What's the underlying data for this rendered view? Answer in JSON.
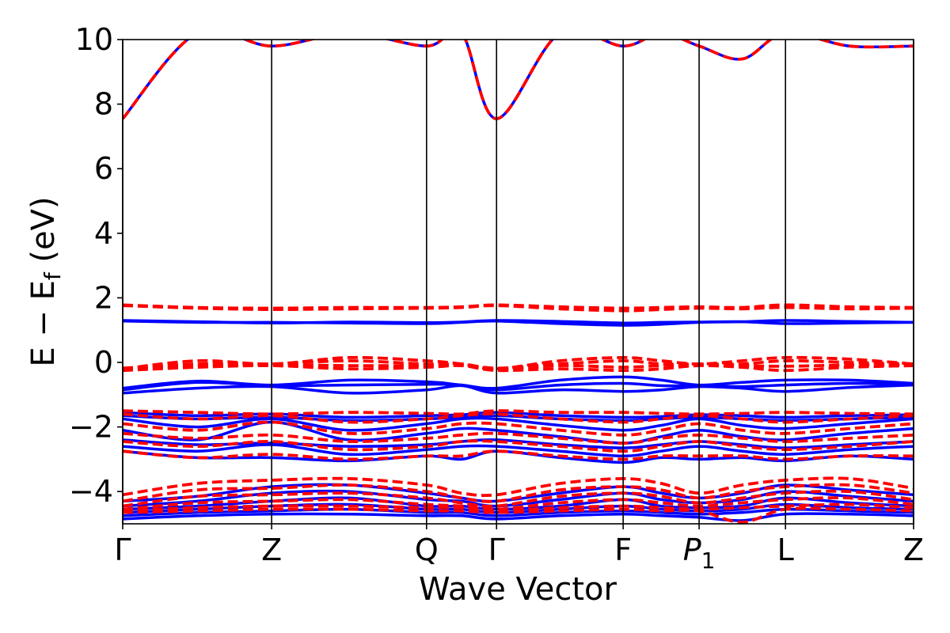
{
  "chart_data": {
    "type": "line",
    "title": "",
    "xlabel": "Wave Vector",
    "ylabel": "E − E",
    "ylabel_subscript": "f",
    "ylabel_unit": " (eV)",
    "ylim": [
      -5,
      10
    ],
    "yticks": [
      {
        "value": -4,
        "label": "−4"
      },
      {
        "value": -2,
        "label": "−2"
      },
      {
        "value": 0,
        "label": "0"
      },
      {
        "value": 2,
        "label": "2"
      },
      {
        "value": 4,
        "label": "4"
      },
      {
        "value": 6,
        "label": "6"
      },
      {
        "value": 8,
        "label": "8"
      },
      {
        "value": 10,
        "label": "10"
      }
    ],
    "kpoints": [
      {
        "label": "Γ",
        "pos": 0.0
      },
      {
        "label": "Z",
        "pos": 1.0
      },
      {
        "label": "Q",
        "pos": 2.04
      },
      {
        "label": "Γ",
        "pos": 2.51
      },
      {
        "label": "F",
        "pos": 3.36
      },
      {
        "label": "P",
        "sub": "1",
        "italic": true,
        "pos": 3.87
      },
      {
        "label": "L",
        "pos": 4.45
      },
      {
        "label": "Z",
        "pos": 5.31
      }
    ],
    "grid": false,
    "legend": "none",
    "series": [
      {
        "style": "solid",
        "color": "#0000ff",
        "bands": [
          [
            7.55,
            10.2,
            9.8,
            10.2,
            9.8,
            10.2,
            7.55,
            10.2,
            9.8,
            10.2,
            9.8,
            9.4,
            10.2,
            9.8,
            9.8
          ],
          [
            1.3,
            1.26,
            1.22,
            1.25,
            1.23,
            1.25,
            1.3,
            1.27,
            1.22,
            1.24,
            1.25,
            1.26,
            1.3,
            1.27,
            1.24
          ],
          [
            1.28,
            1.24,
            1.24,
            1.22,
            1.2,
            1.24,
            1.28,
            1.2,
            1.15,
            1.18,
            1.24,
            1.26,
            1.2,
            1.22,
            1.24
          ],
          [
            -0.8,
            -0.58,
            -0.7,
            -0.55,
            -0.6,
            -0.7,
            -0.8,
            -0.55,
            -0.45,
            -0.55,
            -0.7,
            -0.62,
            -0.55,
            -0.55,
            -0.65
          ],
          [
            -0.85,
            -0.62,
            -0.72,
            -0.7,
            -0.68,
            -0.7,
            -0.85,
            -0.7,
            -0.65,
            -0.72,
            -0.72,
            -0.75,
            -0.7,
            -0.65,
            -0.68
          ],
          [
            -0.95,
            -0.8,
            -0.75,
            -0.95,
            -0.85,
            -0.72,
            -0.95,
            -0.85,
            -0.9,
            -0.85,
            -0.75,
            -0.8,
            -0.9,
            -0.78,
            -0.7
          ],
          [
            -1.55,
            -1.65,
            -1.6,
            -1.7,
            -1.65,
            -1.62,
            -1.55,
            -1.65,
            -1.7,
            -1.68,
            -1.62,
            -1.65,
            -1.7,
            -1.65,
            -1.62
          ],
          [
            -1.65,
            -1.75,
            -1.7,
            -1.8,
            -1.75,
            -1.7,
            -1.65,
            -1.75,
            -1.8,
            -1.75,
            -1.7,
            -1.75,
            -1.8,
            -1.75,
            -1.7
          ],
          [
            -1.75,
            -2.0,
            -1.75,
            -2.1,
            -1.9,
            -1.75,
            -1.75,
            -1.95,
            -2.1,
            -1.95,
            -1.75,
            -1.95,
            -2.05,
            -1.9,
            -1.75
          ],
          [
            -2.1,
            -2.4,
            -1.85,
            -2.4,
            -2.2,
            -2.05,
            -2.1,
            -2.3,
            -2.5,
            -2.3,
            -2.1,
            -2.3,
            -2.4,
            -2.2,
            -2.05
          ],
          [
            -2.4,
            -2.55,
            -2.5,
            -2.6,
            -2.55,
            -2.45,
            -2.4,
            -2.55,
            -2.65,
            -2.55,
            -2.45,
            -2.55,
            -2.65,
            -2.55,
            -2.45
          ],
          [
            -2.6,
            -2.75,
            -2.55,
            -2.85,
            -2.7,
            -2.6,
            -2.6,
            -2.75,
            -2.9,
            -2.75,
            -2.6,
            -2.75,
            -2.85,
            -2.7,
            -2.6
          ],
          [
            -2.75,
            -2.95,
            -2.95,
            -3.05,
            -2.9,
            -3.0,
            -2.75,
            -2.95,
            -3.1,
            -2.95,
            -3.0,
            -2.95,
            -3.05,
            -2.9,
            -3.0
          ],
          [
            -4.3,
            -4.15,
            -3.85,
            -3.8,
            -4.05,
            -4.2,
            -4.3,
            -4.05,
            -3.85,
            -4.05,
            -4.2,
            -4.05,
            -3.8,
            -3.95,
            -4.1
          ],
          [
            -4.45,
            -4.3,
            -4.05,
            -4.0,
            -4.25,
            -4.3,
            -4.45,
            -4.25,
            -4.05,
            -4.25,
            -4.35,
            -4.25,
            -4.0,
            -4.15,
            -4.3
          ],
          [
            -4.55,
            -4.45,
            -4.3,
            -4.2,
            -4.45,
            -4.45,
            -4.55,
            -4.45,
            -4.25,
            -4.45,
            -4.5,
            -4.45,
            -4.2,
            -4.35,
            -4.45
          ],
          [
            -4.65,
            -4.55,
            -4.45,
            -4.4,
            -4.55,
            -4.55,
            -4.65,
            -4.55,
            -4.45,
            -4.55,
            -4.6,
            -4.55,
            -4.4,
            -4.5,
            -4.55
          ],
          [
            -4.75,
            -4.65,
            -4.6,
            -4.55,
            -4.65,
            -4.65,
            -4.75,
            -4.65,
            -4.6,
            -4.65,
            -4.7,
            -4.65,
            -4.55,
            -4.6,
            -4.65
          ],
          [
            -4.85,
            -4.75,
            -4.7,
            -4.7,
            -4.75,
            -4.75,
            -4.85,
            -4.75,
            -4.7,
            -4.75,
            -4.8,
            -4.9,
            -4.7,
            -4.7,
            -4.75
          ]
        ]
      },
      {
        "style": "dashed",
        "color": "#ff0000",
        "bands": [
          [
            7.55,
            10.2,
            9.8,
            10.2,
            9.8,
            10.2,
            7.55,
            10.2,
            9.8,
            10.2,
            9.8,
            9.4,
            10.2,
            9.8,
            9.8
          ],
          [
            1.78,
            1.7,
            1.68,
            1.7,
            1.7,
            1.72,
            1.78,
            1.72,
            1.68,
            1.7,
            1.72,
            1.7,
            1.78,
            1.72,
            1.7
          ],
          [
            1.76,
            1.68,
            1.64,
            1.66,
            1.68,
            1.7,
            1.76,
            1.66,
            1.6,
            1.64,
            1.68,
            1.66,
            1.7,
            1.66,
            1.68
          ],
          [
            -0.2,
            0.05,
            -0.05,
            0.15,
            0.05,
            -0.05,
            -0.2,
            0.05,
            0.15,
            0.05,
            -0.05,
            0.05,
            0.15,
            0.1,
            -0.05
          ],
          [
            -0.18,
            -0.05,
            -0.05,
            0.05,
            -0.05,
            -0.05,
            -0.18,
            -0.05,
            0.05,
            -0.05,
            -0.05,
            -0.05,
            0.05,
            0.0,
            -0.05
          ],
          [
            -0.22,
            -0.1,
            -0.08,
            -0.1,
            -0.1,
            -0.08,
            -0.22,
            -0.1,
            -0.15,
            -0.1,
            -0.08,
            -0.1,
            -0.12,
            -0.08,
            -0.08
          ],
          [
            -0.25,
            -0.15,
            -0.1,
            -0.2,
            -0.15,
            -0.1,
            -0.25,
            -0.2,
            -0.25,
            -0.2,
            -0.1,
            -0.15,
            -0.25,
            -0.15,
            -0.1
          ],
          [
            -1.5,
            -1.55,
            -1.6,
            -1.55,
            -1.58,
            -1.6,
            -1.5,
            -1.55,
            -1.55,
            -1.58,
            -1.6,
            -1.58,
            -1.55,
            -1.58,
            -1.6
          ],
          [
            -1.6,
            -1.75,
            -1.65,
            -1.85,
            -1.75,
            -1.65,
            -1.6,
            -1.75,
            -1.85,
            -1.75,
            -1.65,
            -1.75,
            -1.85,
            -1.75,
            -1.65
          ],
          [
            -1.9,
            -2.1,
            -1.85,
            -2.2,
            -2.05,
            -1.9,
            -1.9,
            -2.1,
            -2.25,
            -2.1,
            -1.9,
            -2.1,
            -2.2,
            -2.05,
            -1.9
          ],
          [
            -2.2,
            -2.35,
            -2.25,
            -2.45,
            -2.35,
            -2.25,
            -2.2,
            -2.35,
            -2.5,
            -2.35,
            -2.25,
            -2.35,
            -2.45,
            -2.35,
            -2.25
          ],
          [
            -2.45,
            -2.6,
            -2.45,
            -2.7,
            -2.6,
            -2.45,
            -2.45,
            -2.6,
            -2.75,
            -2.6,
            -2.45,
            -2.6,
            -2.7,
            -2.6,
            -2.45
          ],
          [
            -2.75,
            -2.95,
            -2.85,
            -3.0,
            -2.9,
            -2.9,
            -2.75,
            -2.9,
            -3.0,
            -2.9,
            -2.9,
            -2.9,
            -3.0,
            -2.9,
            -2.9
          ],
          [
            -4.1,
            -3.75,
            -3.65,
            -3.6,
            -3.8,
            -4.05,
            -4.1,
            -3.75,
            -3.6,
            -3.75,
            -4.05,
            -3.8,
            -3.65,
            -3.6,
            -3.9
          ],
          [
            -4.3,
            -3.95,
            -3.9,
            -3.8,
            -4.0,
            -4.2,
            -4.3,
            -3.95,
            -3.85,
            -3.95,
            -4.2,
            -4.0,
            -3.85,
            -3.8,
            -4.05
          ],
          [
            -4.45,
            -4.15,
            -4.1,
            -4.05,
            -4.2,
            -4.35,
            -4.45,
            -4.15,
            -4.05,
            -4.15,
            -4.35,
            -4.2,
            -4.05,
            -4.0,
            -4.25
          ],
          [
            -4.55,
            -4.35,
            -4.3,
            -4.25,
            -4.4,
            -4.45,
            -4.55,
            -4.35,
            -4.25,
            -4.35,
            -4.45,
            -4.35,
            -4.25,
            -4.2,
            -4.4
          ],
          [
            -4.6,
            -4.5,
            -4.45,
            -4.45,
            -4.5,
            -4.5,
            -4.6,
            -4.5,
            -4.45,
            -4.5,
            -4.55,
            -4.5,
            -4.45,
            -4.4,
            -4.5
          ],
          [
            -4.65,
            -4.6,
            -4.55,
            -4.55,
            -4.6,
            -4.6,
            -4.65,
            -4.6,
            -4.55,
            -4.6,
            -4.6,
            -4.95,
            -4.55,
            -4.55,
            -4.6
          ]
        ]
      }
    ]
  }
}
